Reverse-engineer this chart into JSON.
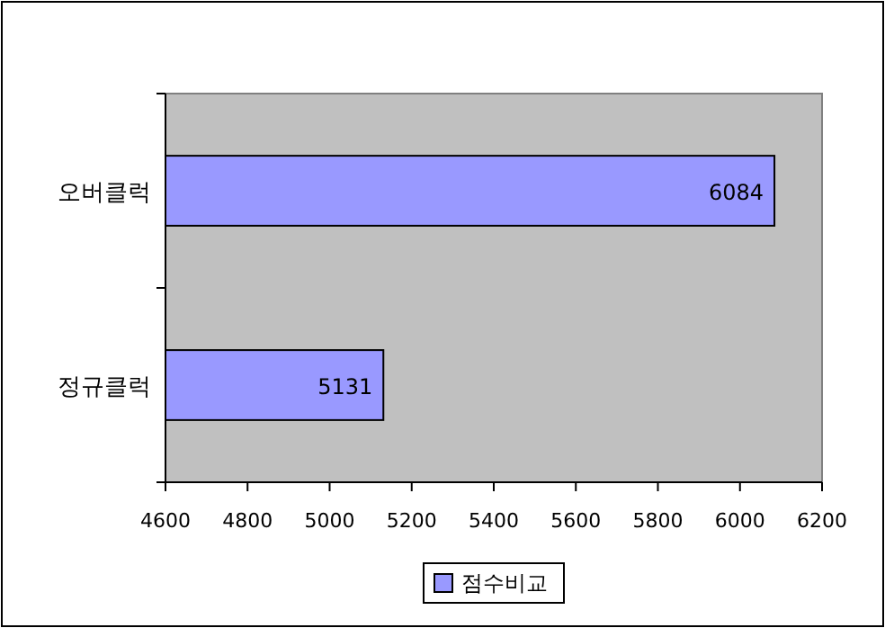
{
  "chart_data": {
    "type": "bar",
    "orientation": "horizontal",
    "categories": [
      "오버클럭",
      "정규클럭"
    ],
    "series": [
      {
        "name": "점수비교",
        "color": "#9999ff",
        "values": [
          6084,
          5131
        ]
      }
    ],
    "xlim": [
      4600,
      6200
    ],
    "xticks": [
      4600,
      4800,
      5000,
      5200,
      5400,
      5600,
      5800,
      6000,
      6200
    ],
    "data_labels": true,
    "legend": "bottom"
  }
}
